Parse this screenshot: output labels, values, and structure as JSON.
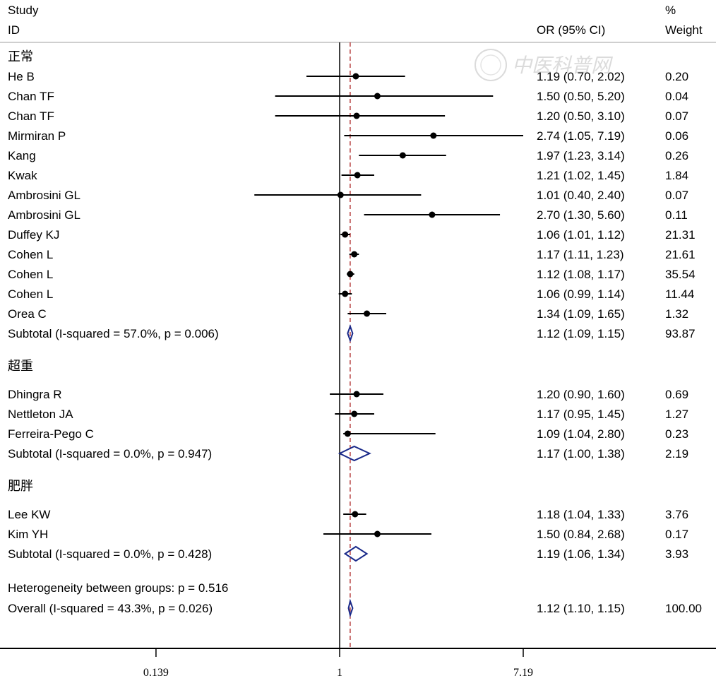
{
  "header": {
    "study_label": "Study",
    "id_label": "ID",
    "or_label": "OR (95% CI)",
    "pct_label": "%",
    "weight_label": "Weight"
  },
  "watermark": {
    "text": "中医科普网",
    "seal_icon": "seal-icon"
  },
  "chart_data": {
    "type": "forest",
    "scale": "log",
    "null_value": 1,
    "overall_estimate": 1.12,
    "xticks": [
      {
        "value": 0.139,
        "label": "0.139"
      },
      {
        "value": 1,
        "label": "1"
      },
      {
        "value": 7.19,
        "label": "7.19"
      }
    ],
    "colors": {
      "point": "#000000",
      "diamond": "#1a2a8a",
      "overall_line": "#b03030",
      "axis": "#000000"
    },
    "groups": [
      {
        "name": "正常",
        "studies": [
          {
            "id": "He B",
            "or": 1.19,
            "lo": 0.7,
            "hi": 2.02,
            "text": "1.19 (0.70, 2.02)",
            "weight": "0.20"
          },
          {
            "id": "Chan TF",
            "or": 1.5,
            "lo": 0.5,
            "hi": 5.2,
            "text": "1.50 (0.50, 5.20)",
            "weight": "0.04"
          },
          {
            "id": "Chan TF",
            "or": 1.2,
            "lo": 0.5,
            "hi": 3.1,
            "text": "1.20 (0.50, 3.10)",
            "weight": "0.07"
          },
          {
            "id": "Mirmiran  P",
            "or": 2.74,
            "lo": 1.05,
            "hi": 7.19,
            "text": "2.74 (1.05, 7.19)",
            "weight": "0.06"
          },
          {
            "id": "Kang",
            "or": 1.97,
            "lo": 1.23,
            "hi": 3.14,
            "text": "1.97 (1.23, 3.14)",
            "weight": "0.26"
          },
          {
            "id": "Kwak",
            "or": 1.21,
            "lo": 1.02,
            "hi": 1.45,
            "text": "1.21 (1.02, 1.45)",
            "weight": "1.84"
          },
          {
            "id": "Ambrosini GL",
            "or": 1.01,
            "lo": 0.4,
            "hi": 2.4,
            "text": "1.01 (0.40, 2.40)",
            "weight": "0.07"
          },
          {
            "id": "Ambrosini GL",
            "or": 2.7,
            "lo": 1.3,
            "hi": 5.6,
            "text": "2.70 (1.30, 5.60)",
            "weight": "0.11"
          },
          {
            "id": "Duffey KJ",
            "or": 1.06,
            "lo": 1.01,
            "hi": 1.12,
            "text": "1.06 (1.01, 1.12)",
            "weight": "21.31"
          },
          {
            "id": "Cohen L",
            "or": 1.17,
            "lo": 1.11,
            "hi": 1.23,
            "text": "1.17 (1.11, 1.23)",
            "weight": "21.61"
          },
          {
            "id": "Cohen L",
            "or": 1.12,
            "lo": 1.08,
            "hi": 1.17,
            "text": "1.12 (1.08, 1.17)",
            "weight": "35.54"
          },
          {
            "id": "Cohen L",
            "or": 1.06,
            "lo": 0.99,
            "hi": 1.14,
            "text": "1.06 (0.99, 1.14)",
            "weight": "11.44"
          },
          {
            "id": "Orea C",
            "or": 1.34,
            "lo": 1.09,
            "hi": 1.65,
            "text": "1.34 (1.09, 1.65)",
            "weight": "1.32"
          }
        ],
        "subtotal": {
          "label": "Subtotal  (I-squared = 57.0%, p = 0.006)",
          "or": 1.12,
          "lo": 1.09,
          "hi": 1.15,
          "text": "1.12 (1.09, 1.15)",
          "weight": "93.87"
        }
      },
      {
        "name": "超重",
        "studies": [
          {
            "id": "Dhingra R",
            "or": 1.2,
            "lo": 0.9,
            "hi": 1.6,
            "text": "1.20 (0.90, 1.60)",
            "weight": "0.69"
          },
          {
            "id": "Nettleton JA",
            "or": 1.17,
            "lo": 0.95,
            "hi": 1.45,
            "text": "1.17 (0.95, 1.45)",
            "weight": "1.27"
          },
          {
            "id": "Ferreira-Pego C",
            "or": 1.09,
            "lo": 1.04,
            "hi": 2.8,
            "text": "1.09 (1.04, 2.80)",
            "weight": "0.23"
          }
        ],
        "subtotal": {
          "label": "Subtotal  (I-squared = 0.0%, p = 0.947)",
          "or": 1.17,
          "lo": 1.0,
          "hi": 1.38,
          "text": "1.17 (1.00, 1.38)",
          "weight": "2.19"
        }
      },
      {
        "name": "肥胖",
        "studies": [
          {
            "id": "Lee KW",
            "or": 1.18,
            "lo": 1.04,
            "hi": 1.33,
            "text": "1.18 (1.04, 1.33)",
            "weight": "3.76"
          },
          {
            "id": "Kim YH",
            "or": 1.5,
            "lo": 0.84,
            "hi": 2.68,
            "text": "1.50 (0.84, 2.68)",
            "weight": "0.17"
          }
        ],
        "subtotal": {
          "label": "Subtotal  (I-squared = 0.0%, p = 0.428)",
          "or": 1.19,
          "lo": 1.06,
          "hi": 1.34,
          "text": "1.19 (1.06, 1.34)",
          "weight": "3.93"
        }
      }
    ],
    "heterogeneity_text": "Heterogeneity between groups: p = 0.516",
    "overall": {
      "label": "Overall  (I-squared = 43.3%, p = 0.026)",
      "or": 1.12,
      "lo": 1.1,
      "hi": 1.15,
      "text": "1.12 (1.10, 1.15)",
      "weight": "100.00"
    }
  }
}
